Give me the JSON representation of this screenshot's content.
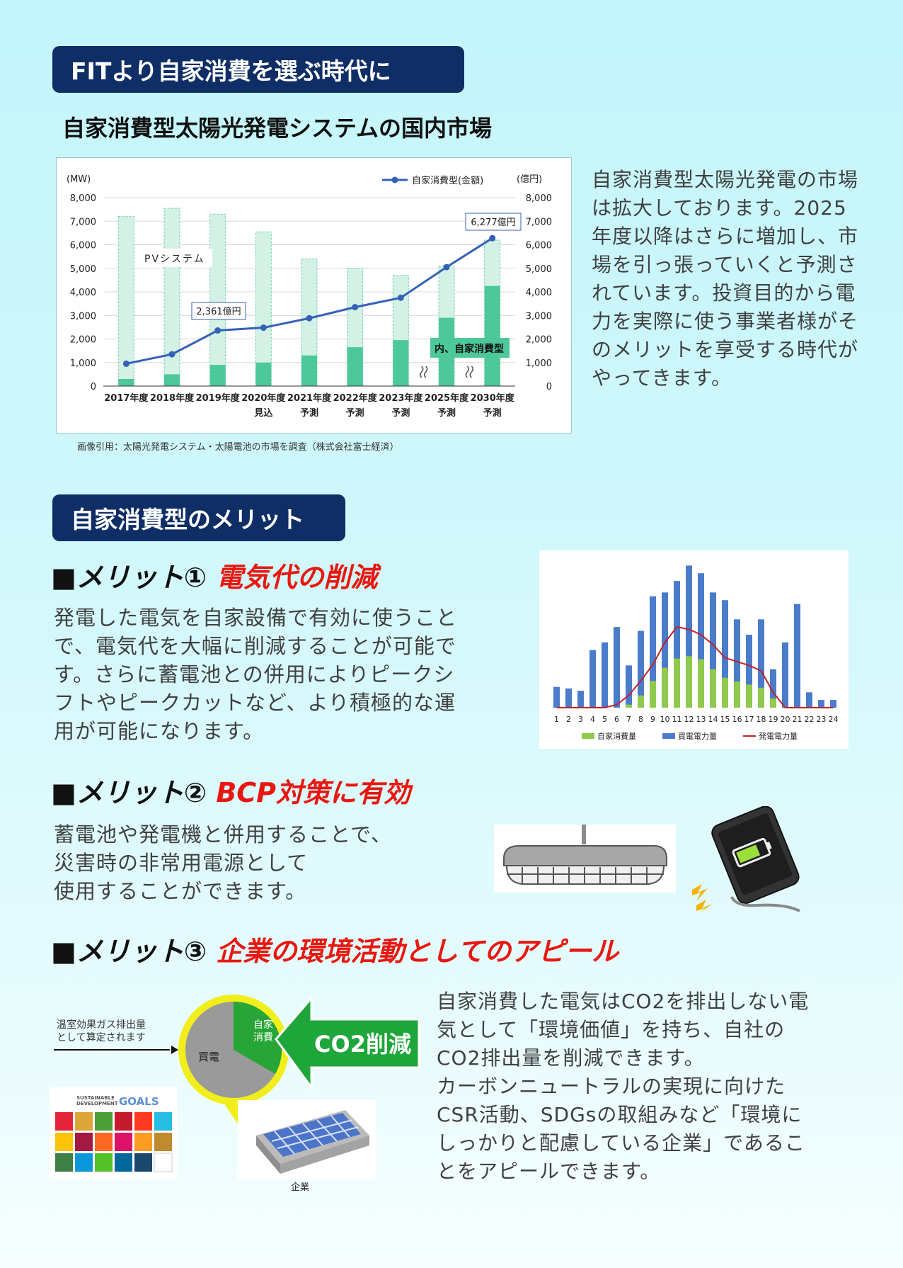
{
  "section1": {
    "banner": "FITより自家消費を選ぶ時代に",
    "subtitle": "自家消費型太陽光発電システムの国内市場",
    "description": "自家消費型太陽光発電の市場は拡大しております。2025年度以降はさらに増加し、市場を引っ張っていくと予測されています。投資目的から電力を実際に使う事業者様がそのメリットを享受する時代がやってきます。",
    "citation": "画像引用：太陽光発電システム・太陽電池の市場を調査（株式会社富士経済）"
  },
  "chart_data": [
    {
      "type": "bar",
      "left_unit": "(MW)",
      "right_unit": "(億円)",
      "legend_line": "自家消費型(金額)",
      "categories": [
        "2017年度",
        "2018年度",
        "2019年度",
        "2020年度",
        "2021年度",
        "2022年度",
        "2023年度",
        "2025年度",
        "2030年度"
      ],
      "category_sublabels": [
        "",
        "",
        "",
        "見込",
        "予測",
        "予測",
        "予測",
        "予測",
        "予測"
      ],
      "y_ticks": [
        "0",
        "1,000",
        "2,000",
        "3,000",
        "4,000",
        "5,000",
        "6,000",
        "7,000",
        "8,000"
      ],
      "ylim": [
        0,
        8000
      ],
      "series": [
        {
          "name": "PVシステム",
          "values": [
            7200,
            7550,
            7300,
            6550,
            5400,
            5000,
            4700,
            5100,
            6200
          ]
        },
        {
          "name": "内、自家消費型",
          "values": [
            300,
            500,
            900,
            1000,
            1300,
            1650,
            1950,
            2900,
            4250
          ]
        },
        {
          "name": "自家消費型(金額)",
          "values": [
            950,
            1350,
            2361,
            2480,
            2880,
            3350,
            3750,
            5050,
            6277
          ]
        }
      ],
      "annotations": [
        "2,361億円",
        "6,277億円"
      ]
    },
    {
      "type": "bar",
      "categories": [
        "1",
        "2",
        "3",
        "4",
        "5",
        "6",
        "7",
        "8",
        "9",
        "10",
        "11",
        "12",
        "13",
        "14",
        "15",
        "16",
        "17",
        "18",
        "19",
        "20",
        "21",
        "22",
        "23",
        "24"
      ],
      "series": [
        {
          "name": "自家消費量",
          "values": [
            0,
            0,
            0,
            0,
            0,
            0,
            0.4,
            1.6,
            3.5,
            5.2,
            6.4,
            6.7,
            6.3,
            5.0,
            3.9,
            3.4,
            3.0,
            2.6,
            1.2,
            0,
            0,
            0,
            0,
            0
          ]
        },
        {
          "name": "買電電力量",
          "values": [
            2.7,
            2.5,
            2.2,
            7.5,
            8.5,
            10.5,
            5.5,
            10.0,
            14.5,
            15.0,
            16.5,
            18.5,
            17.5,
            15.0,
            14.0,
            11.5,
            9.5,
            11.5,
            5.0,
            8.5,
            13.5,
            2.0,
            1.0,
            1.0
          ]
        },
        {
          "name": "発電電力量",
          "values": [
            0,
            0,
            0,
            0,
            0,
            0.4,
            1.6,
            3.5,
            5.6,
            8.5,
            10.5,
            10.2,
            9.5,
            8.2,
            6.5,
            6.0,
            5.5,
            4.8,
            2.0,
            0,
            0,
            0,
            0,
            0
          ]
        }
      ]
    }
  ],
  "section2": {
    "banner": "自家消費型のメリット",
    "merit1": {
      "prefix": "■メリット①",
      "title": "電気代の削減",
      "lines": [
        "発電した電気を自家設備で有効に使うこと",
        "で、電気代を大幅に削減することが可能で",
        "す。さらに蓄電池との併用によりピークシ",
        "フトやピークカットなど、より積極的な運",
        "用が可能になります。"
      ]
    },
    "merit2": {
      "prefix": "■メリット②",
      "title": "BCP対策に有効",
      "lines": [
        "蓄電池や発電機と併用することで、",
        "災害時の非常用電源として",
        "使用することができます。"
      ]
    },
    "merit3": {
      "prefix": "■メリット③",
      "title": "企業の環境活動としてのアピール",
      "lines": [
        "自家消費した電気はCO2を排出しない電",
        "気として「環境価値」を持ち、自社の",
        "CO2排出量を削減できます。",
        "カーボンニュートラルの実現に向けた",
        "CSR活動、SDGsの取組みなど「環境に",
        "しっかりと配慮している企業」であるこ",
        "とをアピールできます。"
      ]
    },
    "diagram": {
      "note_line1": "温室効果ガス排出量",
      "note_line2": "として算定されます",
      "slice_self_1": "自家",
      "slice_self_2": "消費",
      "slice_grid": "買電",
      "arrow_label": "CO2削減",
      "company_label": "企業",
      "sdgs_label_1": "SUSTAINABLE",
      "sdgs_label_2": "DEVELOPMENT",
      "sdgs_goals": "GOALS"
    }
  },
  "colors": {
    "navy": "#0f2e66",
    "red": "#e8170f",
    "pv_light": "#d3f0e4",
    "self_green": "#4cc89a",
    "line_blue": "#3561b8",
    "hourly_blue": "#4a7ccb",
    "hourly_green": "#8fc94e",
    "hourly_red": "#c0232a",
    "co2_green": "#1fa63a",
    "yellow_ring": "#f2ee1c"
  }
}
